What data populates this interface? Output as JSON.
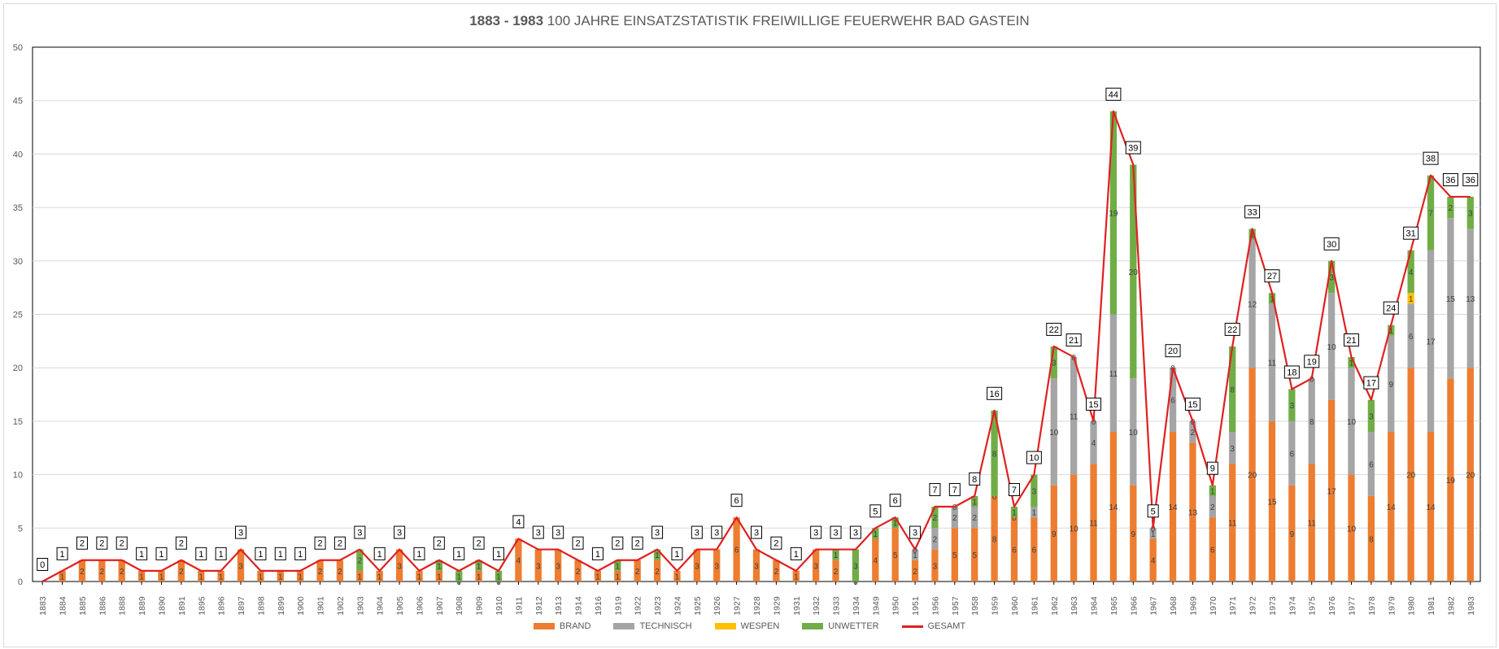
{
  "chart_data": {
    "type": "bar",
    "stacked": true,
    "title_bold": "1883 - 1983",
    "title_rest": "100 JAHRE EINSATZSTATISTIK FREIWILLIGE FEUERWEHR BAD GASTEIN",
    "ylim": [
      0,
      50
    ],
    "yticks": [
      0,
      5,
      10,
      15,
      20,
      25,
      30,
      35,
      40,
      45,
      50
    ],
    "grid": true,
    "legend_position": "bottom",
    "categories": [
      "1883",
      "1884",
      "1885",
      "1886",
      "1888",
      "1889",
      "1890",
      "1891",
      "1895",
      "1896",
      "1897",
      "1898",
      "1899",
      "1900",
      "1901",
      "1902",
      "1903",
      "1904",
      "1905",
      "1906",
      "1907",
      "1908",
      "1909",
      "1910",
      "1911",
      "1912",
      "1913",
      "1914",
      "1916",
      "1919",
      "1922",
      "1923",
      "1924",
      "1925",
      "1926",
      "1927",
      "1928",
      "1929",
      "1931",
      "1932",
      "1933",
      "1934",
      "1949",
      "1950",
      "1951",
      "1956",
      "1957",
      "1958",
      "1959",
      "1960",
      "1961",
      "1962",
      "1963",
      "1964",
      "1965",
      "1966",
      "1967",
      "1968",
      "1969",
      "1970",
      "1971",
      "1972",
      "1973",
      "1974",
      "1975",
      "1976",
      "1977",
      "1978",
      "1979",
      "1980",
      "1981",
      "1982",
      "1983"
    ],
    "series": [
      {
        "name": "BRAND",
        "color": "#ed7d31",
        "values": [
          0,
          1,
          2,
          2,
          2,
          1,
          1,
          2,
          1,
          1,
          3,
          1,
          1,
          1,
          2,
          2,
          1,
          1,
          3,
          1,
          1,
          0,
          1,
          0,
          4,
          3,
          3,
          2,
          1,
          1,
          2,
          2,
          1,
          3,
          3,
          6,
          3,
          2,
          1,
          3,
          2,
          0,
          4,
          5,
          2,
          3,
          5,
          5,
          8,
          6,
          6,
          9,
          10,
          11,
          14,
          9,
          4,
          14,
          13,
          6,
          11,
          20,
          15,
          9,
          11,
          17,
          10,
          8,
          14,
          20,
          14,
          19,
          20
        ]
      },
      {
        "name": "TECHNISCH",
        "color": "#a5a5a5",
        "values": [
          0,
          0,
          0,
          0,
          0,
          0,
          0,
          0,
          0,
          0,
          0,
          0,
          0,
          0,
          0,
          0,
          0,
          0,
          0,
          0,
          0,
          0,
          0,
          0,
          0,
          0,
          0,
          0,
          0,
          0,
          0,
          0,
          0,
          0,
          0,
          0,
          0,
          0,
          0,
          0,
          0,
          0,
          0,
          0,
          1,
          2,
          2,
          2,
          0,
          0,
          1,
          10,
          11,
          4,
          11,
          10,
          1,
          6,
          2,
          2,
          3,
          12,
          11,
          6,
          8,
          10,
          10,
          6,
          9,
          6,
          17,
          15,
          13
        ]
      },
      {
        "name": "WESPEN",
        "color": "#ffc000",
        "values": [
          0,
          0,
          0,
          0,
          0,
          0,
          0,
          0,
          0,
          0,
          0,
          0,
          0,
          0,
          0,
          0,
          0,
          0,
          0,
          0,
          0,
          0,
          0,
          0,
          0,
          0,
          0,
          0,
          0,
          0,
          0,
          0,
          0,
          0,
          0,
          0,
          0,
          0,
          0,
          0,
          0,
          0,
          0,
          0,
          0,
          0,
          0,
          0,
          0,
          0,
          0,
          0,
          0,
          0,
          0,
          0,
          0,
          0,
          0,
          0,
          0,
          0,
          0,
          0,
          0,
          0,
          0,
          0,
          0,
          1,
          0,
          0,
          0
        ]
      },
      {
        "name": "UNWETTER",
        "color": "#70ad47",
        "values": [
          0,
          0,
          0,
          0,
          0,
          0,
          0,
          0,
          0,
          0,
          0,
          0,
          0,
          0,
          0,
          0,
          2,
          0,
          0,
          0,
          1,
          1,
          1,
          1,
          0,
          0,
          0,
          0,
          0,
          1,
          0,
          1,
          0,
          0,
          0,
          0,
          0,
          0,
          0,
          0,
          1,
          3,
          1,
          1,
          0,
          2,
          0,
          1,
          8,
          1,
          3,
          3,
          0,
          0,
          19,
          20,
          0,
          0,
          0,
          1,
          8,
          1,
          1,
          3,
          0,
          3,
          1,
          3,
          1,
          4,
          7,
          2,
          3
        ]
      }
    ],
    "total": {
      "name": "GESAMT",
      "color": "#e02020",
      "values": [
        0,
        1,
        2,
        2,
        2,
        1,
        1,
        2,
        1,
        1,
        3,
        1,
        1,
        1,
        2,
        2,
        3,
        1,
        3,
        1,
        2,
        1,
        2,
        1,
        4,
        3,
        3,
        2,
        1,
        2,
        2,
        3,
        1,
        3,
        3,
        6,
        3,
        2,
        1,
        3,
        3,
        3,
        5,
        6,
        3,
        7,
        7,
        8,
        16,
        7,
        10,
        22,
        21,
        15,
        44,
        39,
        5,
        20,
        15,
        9,
        22,
        33,
        27,
        18,
        19,
        30,
        21,
        17,
        24,
        31,
        38,
        36,
        36
      ]
    }
  }
}
